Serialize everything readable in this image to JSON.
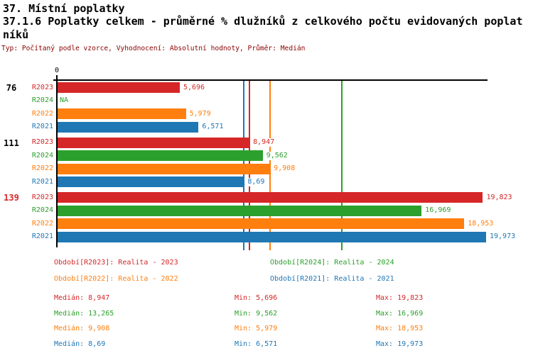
{
  "header": {
    "title_line1": "37. Místní poplatky",
    "title_line2": "37.1.6 Poplatky celkem - průměrné % dlužníků z celkového počtu evidovaných poplatníků",
    "meta": "Typ: Počítaný podle vzorce, Vyhodnocení: Absolutní hodnoty, Průměr: Medián"
  },
  "colors": {
    "R2023": "#d62728",
    "R2024": "#2ca02c",
    "R2022": "#ff7f0e",
    "R2021": "#1f77b4",
    "meta_text": "#8b0000",
    "axis": "#000000"
  },
  "chart_data": {
    "type": "bar",
    "orientation": "horizontal",
    "title": "37.1.6 Poplatky celkem - průměrné % dlužníků z celkového počtu evidovaných poplatníků",
    "x_axis": {
      "tick_labels": [
        "0"
      ],
      "x_min": 0,
      "x_max": 20,
      "grid": false
    },
    "series_order": [
      "R2023",
      "R2024",
      "R2022",
      "R2021"
    ],
    "groups": [
      {
        "label": "76",
        "label_color": "#000000",
        "bars": [
          {
            "series": "R2023",
            "value": 5.696,
            "label": "5,696"
          },
          {
            "series": "R2024",
            "value": null,
            "label": "NA"
          },
          {
            "series": "R2022",
            "value": 5.979,
            "label": "5,979"
          },
          {
            "series": "R2021",
            "value": 6.571,
            "label": "6,571"
          }
        ]
      },
      {
        "label": "111",
        "label_color": "#000000",
        "bars": [
          {
            "series": "R2023",
            "value": 8.947,
            "label": "8,947"
          },
          {
            "series": "R2024",
            "value": 9.562,
            "label": "9,562"
          },
          {
            "series": "R2022",
            "value": 9.908,
            "label": "9,908"
          },
          {
            "series": "R2021",
            "value": 8.69,
            "label": "8,69"
          }
        ]
      },
      {
        "label": "139",
        "label_color": "#d62728",
        "bars": [
          {
            "series": "R2023",
            "value": 19.823,
            "label": "19,823"
          },
          {
            "series": "R2024",
            "value": 16.969,
            "label": "16,969"
          },
          {
            "series": "R2022",
            "value": 18.953,
            "label": "18,953"
          },
          {
            "series": "R2021",
            "value": 19.973,
            "label": "19,973"
          }
        ]
      }
    ],
    "median_lines": [
      {
        "series": "R2021",
        "value": 8.69
      },
      {
        "series": "R2023",
        "value": 8.947
      },
      {
        "series": "R2022",
        "value": 9.908
      },
      {
        "series": "R2024",
        "value": 13.265
      }
    ],
    "legend": [
      {
        "series": "R2023",
        "text": "Období[R2023]: Realita - 2023"
      },
      {
        "series": "R2024",
        "text": "Období[R2024]: Realita - 2024"
      },
      {
        "series": "R2022",
        "text": "Období[R2022]: Realita - 2022"
      },
      {
        "series": "R2021",
        "text": "Období[R2021]: Realita - 2021"
      }
    ],
    "stats": [
      {
        "series": "R2023",
        "median": "Medián: 8,947",
        "min": "Min: 5,696",
        "max": "Max: 19,823"
      },
      {
        "series": "R2024",
        "median": "Medián: 13,265",
        "min": "Min: 9,562",
        "max": "Max: 16,969"
      },
      {
        "series": "R2022",
        "median": "Medián: 9,908",
        "min": "Min: 5,979",
        "max": "Max: 18,953"
      },
      {
        "series": "R2021",
        "median": "Medián: 8,69",
        "min": "Min: 6,571",
        "max": "Max: 19,973"
      }
    ]
  }
}
